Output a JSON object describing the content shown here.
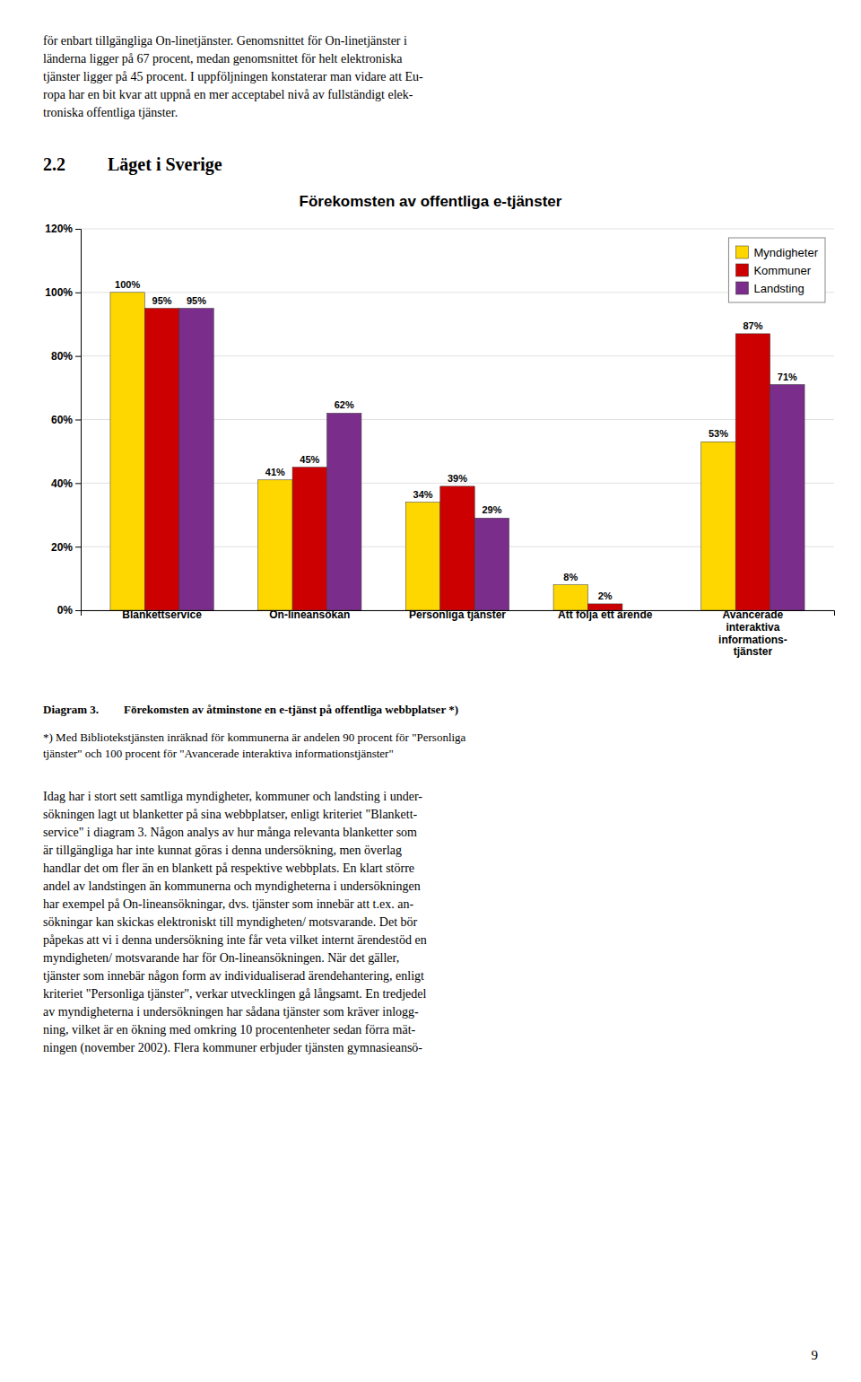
{
  "text_above": [
    "för enbart tillgängliga On-linetjänster. Genomsnittet för On-linetjänster i",
    "länderna ligger på 67 procent, medan genomsnittet för helt elektroniska",
    "tjänster ligger på 45 procent. I uppföljningen konstaterar man vidare att Eu-",
    "ropa har en bit kvar att uppnå en mer acceptabel nivå av fullständigt elek-",
    "troniska offentliga tjänster."
  ],
  "section_number": "2.2",
  "section_title": "Läget i Sverige",
  "diagram_label": "Diagram 3.",
  "diagram_caption": "Förekomsten av åtminstone en e-tjänst på offentliga webbplatser *)",
  "footnote": [
    "*) Med Bibliotekstjänsten inräknad för kommunerna är andelen 90 procent för \"Personliga",
    "tjänster\" och 100 procent för \"Avancerade interaktiva informationstjänster\""
  ],
  "text_below": [
    "Idag har i stort sett samtliga myndigheter, kommuner och landsting i under-",
    "sökningen lagt ut blanketter på sina webbplatser, enligt kriteriet \"Blankett-",
    "service\" i diagram 3. Någon analys av hur många relevanta blanketter som",
    "är tillgängliga har inte kunnat göras i denna undersökning, men överlag",
    "handlar det om fler än en blankett på respektive webbplats. En klart större",
    "andel av landstingen än kommunerna och myndigheterna i undersökningen",
    "har exempel på On-lineansökningar, dvs. tjänster som innebär att t.ex. an-",
    "sökningar kan skickas elektroniskt till myndigheten/ motsvarande. Det bör",
    "påpekas att vi i denna undersökning inte får veta vilket internt ärendestöd en",
    "myndigheten/ motsvarande har för On-lineansökningen. När det gäller,",
    "tjänster som innebär någon form av individualiserad ärendehantering, enligt",
    "kriteriet \"Personliga tjänster\", verkar utvecklingen gå långsamt. En tredjedel",
    "av myndigheterna i undersökningen har sådana tjänster som kräver inlogg-",
    "ning, vilket är en ökning med omkring 10 procentenheter sedan förra mät-",
    "ningen (november 2002). Flera kommuner erbjuder tjänsten gymnasieansö-"
  ],
  "page_number": "9",
  "chart_data": {
    "type": "bar",
    "title": "Förekomsten av offentliga e-tjänster",
    "categories": [
      "Blankettservice",
      "On-lineansökan",
      "Personliga tjänster",
      "Att följa ett ärende",
      "Avancerade\ninteraktiva\ninformations-\ntjänster"
    ],
    "series": [
      {
        "name": "Myndigheter",
        "color": "#FFD700",
        "values": [
          100,
          41,
          34,
          8,
          53
        ],
        "value_labels": [
          "100%",
          "41%",
          "34%",
          "8%",
          "53%"
        ]
      },
      {
        "name": "Kommuner",
        "color": "#CC0000",
        "values": [
          95,
          45,
          39,
          2,
          87
        ],
        "value_labels": [
          "95%",
          "45%",
          "39%",
          "2%",
          "87%"
        ]
      },
      {
        "name": "Landsting",
        "color": "#7B2D8B",
        "values": [
          95,
          62,
          29,
          0,
          71
        ],
        "value_labels": [
          "95%",
          "62%",
          "29%",
          null,
          "71%"
        ]
      }
    ],
    "ylim": [
      0,
      120
    ],
    "yticks": [
      {
        "value": 0,
        "label": "0%"
      },
      {
        "value": 20,
        "label": "20%"
      },
      {
        "value": 40,
        "label": "40%"
      },
      {
        "value": 60,
        "label": "60%"
      },
      {
        "value": 80,
        "label": "80%"
      },
      {
        "value": 100,
        "label": "100%"
      },
      {
        "value": 120,
        "label": "120%"
      }
    ],
    "grid": true,
    "legend": "upper right",
    "data_labels": true
  }
}
